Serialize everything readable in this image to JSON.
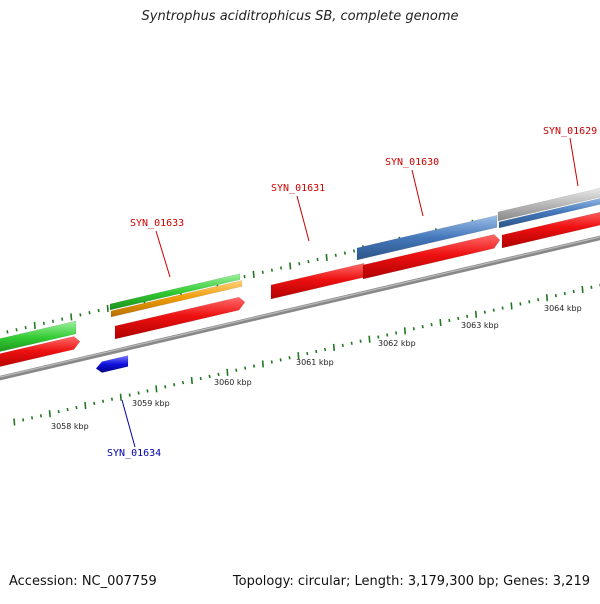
{
  "title": "Syntrophus aciditrophicus SB, complete genome",
  "footer": {
    "accession": "Accession: NC_007759",
    "summary": "Topology: circular; Length: 3,179,300 bp; Genes: 3,219"
  },
  "axis": {
    "labels": [
      "3058 kbp",
      "3059 kbp",
      "3060 kbp",
      "3061 kbp",
      "3062 kbp",
      "3063 kbp",
      "3064 kbp"
    ]
  },
  "gene_labels": [
    {
      "text": "SYN_01633",
      "color": "#cc0000"
    },
    {
      "text": "SYN_01631",
      "color": "#cc0000"
    },
    {
      "text": "SYN_01630",
      "color": "#cc0000"
    },
    {
      "text": "SYN_01629",
      "color": "#cc0000"
    },
    {
      "text": "SYN_01634",
      "color": "#0000aa"
    }
  ],
  "colors": {
    "cds": "#ee1111",
    "gene_green": "#33cc33",
    "orange": "#ee9900",
    "steelblue": "#4477bb",
    "grey": "#bbbbbb",
    "minus_blue": "#1111dd",
    "backbone": "#888888",
    "ticks": "#227722"
  }
}
